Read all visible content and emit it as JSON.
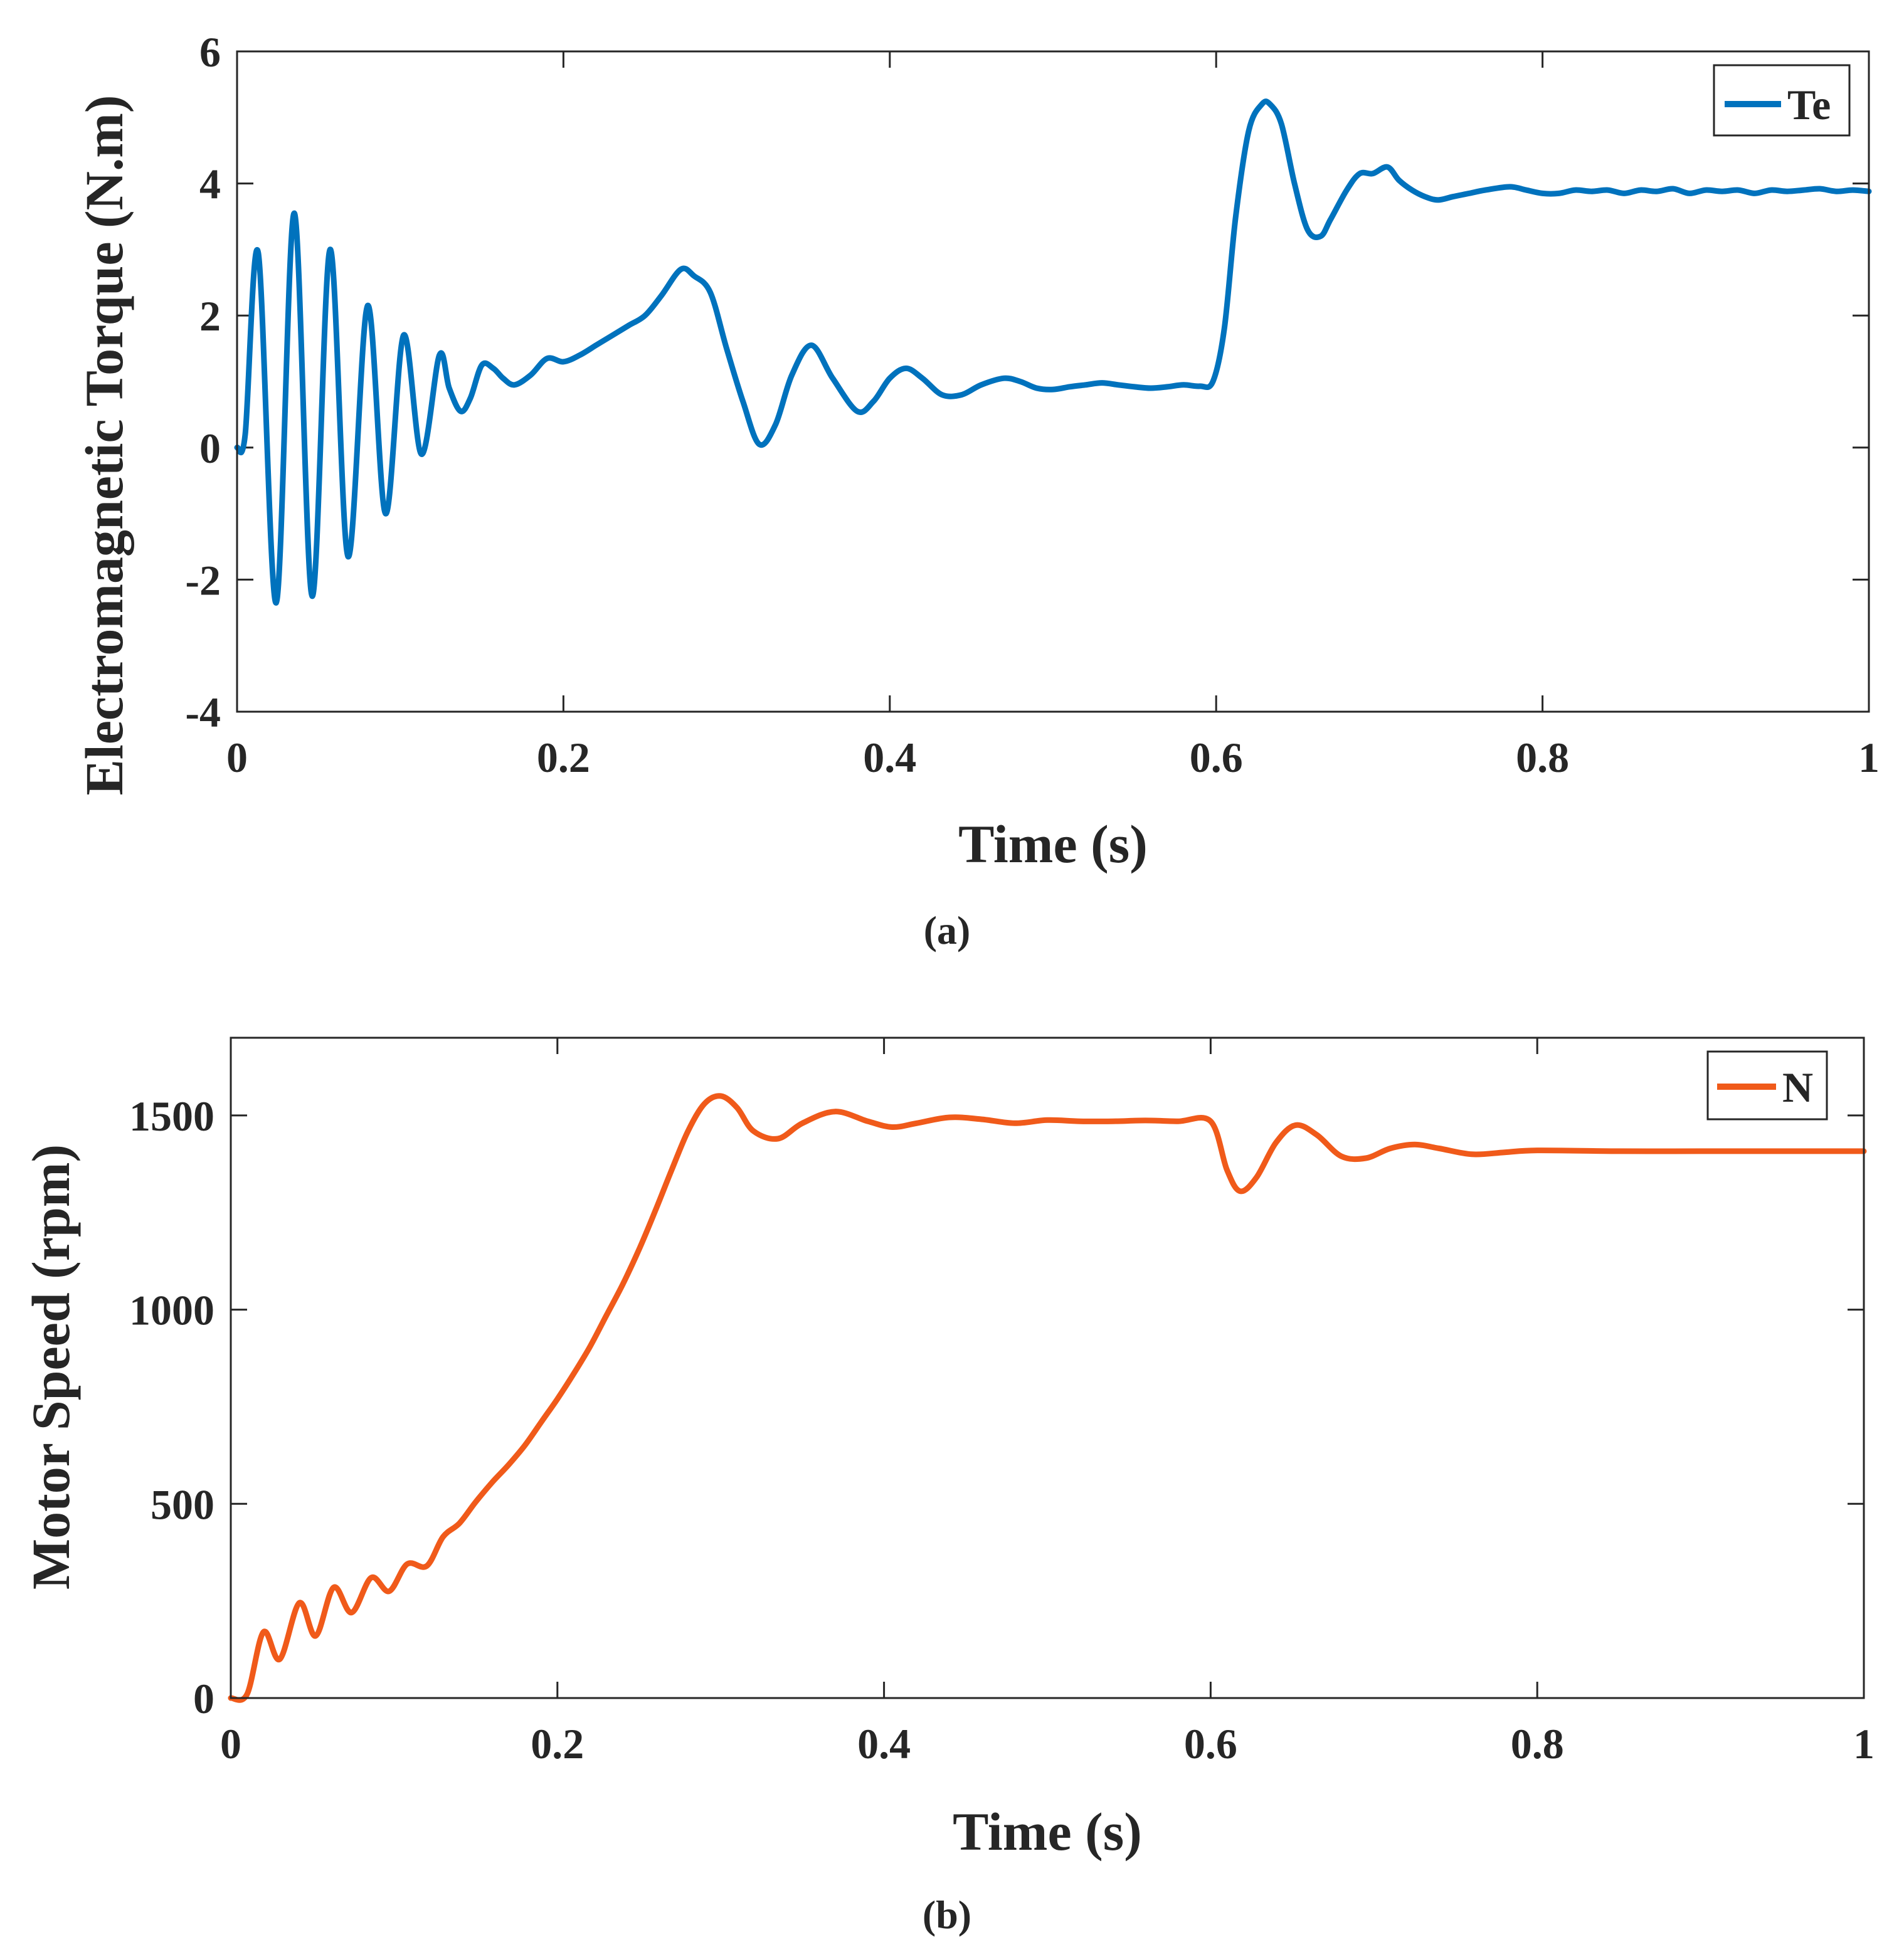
{
  "chart_data": [
    {
      "type": "line",
      "caption": "(a)",
      "xlabel": "Time (s)",
      "ylabel": "Electromagnetic Torque (N.m)",
      "xlim": [
        0,
        1
      ],
      "ylim": [
        -4,
        6
      ],
      "xticks": [
        0,
        0.2,
        0.4,
        0.6,
        0.8,
        1
      ],
      "xtick_labels": [
        "0",
        "0.2",
        "0.4",
        "0.6",
        "0.8",
        "1"
      ],
      "yticks": [
        -4,
        -2,
        0,
        2,
        4,
        6
      ],
      "ytick_labels": [
        "-4",
        "-2",
        "0",
        "2",
        "4",
        "6"
      ],
      "grid": false,
      "legend_position": "top-right",
      "series": [
        {
          "name": "Te",
          "color": "#0072BD",
          "x": [
            0,
            0.005,
            0.013,
            0.024,
            0.035,
            0.046,
            0.057,
            0.068,
            0.08,
            0.091,
            0.102,
            0.113,
            0.124,
            0.13,
            0.137,
            0.143,
            0.15,
            0.157,
            0.163,
            0.17,
            0.18,
            0.19,
            0.2,
            0.21,
            0.22,
            0.23,
            0.24,
            0.25,
            0.26,
            0.272,
            0.28,
            0.29,
            0.3,
            0.31,
            0.32,
            0.33,
            0.34,
            0.352,
            0.365,
            0.38,
            0.39,
            0.4,
            0.41,
            0.42,
            0.432,
            0.444,
            0.456,
            0.47,
            0.48,
            0.49,
            0.5,
            0.51,
            0.52,
            0.53,
            0.54,
            0.55,
            0.56,
            0.57,
            0.58,
            0.59,
            0.598,
            0.605,
            0.612,
            0.62,
            0.628,
            0.633,
            0.64,
            0.648,
            0.656,
            0.664,
            0.67,
            0.68,
            0.688,
            0.696,
            0.705,
            0.712,
            0.72,
            0.728,
            0.736,
            0.745,
            0.755,
            0.765,
            0.78,
            0.79,
            0.8,
            0.81,
            0.82,
            0.83,
            0.84,
            0.85,
            0.86,
            0.87,
            0.88,
            0.89,
            0.9,
            0.91,
            0.92,
            0.93,
            0.94,
            0.95,
            0.96,
            0.97,
            0.98,
            0.99,
            1.0
          ],
          "y": [
            0,
            0.2,
            2.95,
            -2.35,
            3.55,
            -2.25,
            3.0,
            -1.65,
            2.15,
            -1.0,
            1.7,
            -0.1,
            1.4,
            0.9,
            0.55,
            0.75,
            1.25,
            1.2,
            1.05,
            0.95,
            1.1,
            1.35,
            1.3,
            1.4,
            1.55,
            1.7,
            1.85,
            2.0,
            2.3,
            2.7,
            2.6,
            2.35,
            1.5,
            0.7,
            0.05,
            0.35,
            1.1,
            1.55,
            1.05,
            0.55,
            0.7,
            1.05,
            1.2,
            1.05,
            0.8,
            0.8,
            0.95,
            1.05,
            1.0,
            0.9,
            0.88,
            0.92,
            0.95,
            0.98,
            0.95,
            0.92,
            0.9,
            0.92,
            0.95,
            0.93,
            1.0,
            1.8,
            3.5,
            4.8,
            5.2,
            5.2,
            4.9,
            4.0,
            3.3,
            3.2,
            3.45,
            3.9,
            4.15,
            4.15,
            4.25,
            4.05,
            3.9,
            3.8,
            3.75,
            3.8,
            3.85,
            3.9,
            3.95,
            3.9,
            3.85,
            3.85,
            3.9,
            3.88,
            3.9,
            3.85,
            3.9,
            3.88,
            3.92,
            3.85,
            3.9,
            3.88,
            3.9,
            3.85,
            3.9,
            3.88,
            3.9,
            3.92,
            3.88,
            3.9,
            3.88
          ]
        }
      ]
    },
    {
      "type": "line",
      "caption": "(b)",
      "xlabel": "Time (s)",
      "ylabel": "Motor Speed (rpm)",
      "xlim": [
        0,
        1
      ],
      "ylim": [
        0,
        1700
      ],
      "xticks": [
        0,
        0.2,
        0.4,
        0.6,
        0.8,
        1
      ],
      "xtick_labels": [
        "0",
        "0.2",
        "0.4",
        "0.6",
        "0.8",
        "1"
      ],
      "yticks": [
        0,
        500,
        1000,
        1500
      ],
      "ytick_labels": [
        "0",
        "500",
        "1000",
        "1500"
      ],
      "grid": false,
      "legend_position": "top-right",
      "series": [
        {
          "name": "N",
          "color": "#F05A1A",
          "x": [
            0,
            0.01,
            0.02,
            0.03,
            0.042,
            0.052,
            0.063,
            0.074,
            0.086,
            0.097,
            0.108,
            0.12,
            0.13,
            0.14,
            0.15,
            0.16,
            0.17,
            0.18,
            0.19,
            0.2,
            0.21,
            0.22,
            0.23,
            0.24,
            0.25,
            0.26,
            0.27,
            0.28,
            0.29,
            0.3,
            0.31,
            0.32,
            0.335,
            0.35,
            0.37,
            0.39,
            0.405,
            0.42,
            0.44,
            0.46,
            0.48,
            0.5,
            0.52,
            0.54,
            0.56,
            0.58,
            0.6,
            0.61,
            0.618,
            0.628,
            0.64,
            0.652,
            0.665,
            0.68,
            0.695,
            0.71,
            0.725,
            0.74,
            0.76,
            0.78,
            0.8,
            0.85,
            0.9,
            0.95,
            1.0
          ],
          "y": [
            0,
            10,
            170,
            100,
            245,
            160,
            285,
            220,
            310,
            275,
            345,
            340,
            415,
            450,
            505,
            555,
            600,
            650,
            710,
            770,
            835,
            905,
            985,
            1065,
            1155,
            1255,
            1360,
            1460,
            1530,
            1550,
            1520,
            1460,
            1440,
            1480,
            1510,
            1485,
            1470,
            1480,
            1495,
            1490,
            1480,
            1488,
            1485,
            1485,
            1487,
            1485,
            1485,
            1360,
            1305,
            1340,
            1430,
            1475,
            1450,
            1395,
            1390,
            1415,
            1425,
            1415,
            1400,
            1405,
            1410,
            1408,
            1408,
            1408,
            1408
          ]
        }
      ]
    }
  ]
}
